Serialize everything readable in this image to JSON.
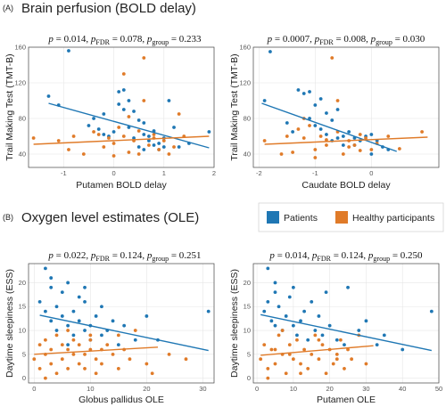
{
  "colors": {
    "patients": "#1f77b4",
    "healthy": "#e07b29"
  },
  "sections": [
    {
      "letter": "(A)",
      "title": "Brain perfusion (BOLD delay)"
    },
    {
      "letter": "(B)",
      "title": "Oxygen level estimates (OLE)"
    }
  ],
  "legend": {
    "items": [
      "Patients",
      "Healthy participants"
    ],
    "placement": "right, between panels"
  },
  "chart_data": [
    {
      "type": "scatter",
      "stats": {
        "p": "0.014",
        "p_fdr": "0.078",
        "p_group": "0.233"
      },
      "xlabel": "Putamen BOLD delay",
      "ylabel": "Trail Making Test (TMT-B)",
      "xlim": [
        -1.7,
        2.0
      ],
      "ylim": [
        25,
        160
      ],
      "xticks": [
        -1,
        0,
        1,
        2
      ],
      "yticks": [
        40,
        80,
        120,
        160
      ],
      "grid": true,
      "series": [
        {
          "name": "Patients",
          "color": "#1f77b4",
          "x": [
            -1.3,
            -1.1,
            -0.9,
            -0.5,
            -0.4,
            -0.3,
            -0.2,
            -0.1,
            0.0,
            0.1,
            0.2,
            0.2,
            0.3,
            0.3,
            0.4,
            0.5,
            0.5,
            0.6,
            0.6,
            0.7,
            0.7,
            0.8,
            0.8,
            0.9,
            0.9,
            1.0,
            1.0,
            1.1,
            1.2,
            1.3,
            1.5,
            1.9,
            0.4,
            0.1,
            -0.2,
            0.6
          ],
          "y": [
            105,
            95,
            156,
            72,
            80,
            68,
            85,
            60,
            65,
            110,
            112,
            90,
            70,
            100,
            58,
            48,
            78,
            62,
            45,
            60,
            55,
            50,
            66,
            52,
            45,
            48,
            58,
            100,
            70,
            48,
            52,
            65,
            88,
            96,
            62,
            75
          ],
          "trend": [
            [
              -1.3,
              97
            ],
            [
              1.9,
              47
            ]
          ]
        },
        {
          "name": "Healthy participants",
          "color": "#e07b29",
          "x": [
            -1.6,
            -1.1,
            -0.9,
            -0.8,
            -0.6,
            -0.4,
            -0.3,
            -0.2,
            -0.1,
            0.0,
            0.0,
            0.1,
            0.2,
            0.3,
            0.3,
            0.4,
            0.5,
            0.5,
            0.6,
            0.7,
            0.8,
            0.9,
            1.0,
            1.1,
            1.2,
            1.3,
            1.4,
            0.2,
            0.6,
            0.8
          ],
          "y": [
            58,
            55,
            45,
            60,
            40,
            65,
            62,
            48,
            58,
            38,
            52,
            70,
            60,
            82,
            42,
            55,
            40,
            66,
            148,
            50,
            58,
            45,
            55,
            40,
            48,
            85,
            60,
            130,
            100,
            62
          ],
          "trend": [
            [
              -1.6,
              51
            ],
            [
              1.9,
              60
            ]
          ]
        }
      ]
    },
    {
      "type": "scatter",
      "stats": {
        "p": "0.0007",
        "p_fdr": "0.008",
        "p_group": "0.030"
      },
      "xlabel": "Caudate BOLD delay",
      "ylabel": "Trail Making Test (TMT-B)",
      "xlim": [
        -2.1,
        1.2
      ],
      "ylim": [
        25,
        160
      ],
      "xticks": [
        -2,
        -1,
        0
      ],
      "yticks": [
        40,
        80,
        120,
        160
      ],
      "grid": true,
      "series": [
        {
          "name": "Patients",
          "color": "#1f77b4",
          "x": [
            -1.9,
            -1.8,
            -1.4,
            -1.3,
            -1.2,
            -1.1,
            -1.1,
            -1.0,
            -1.0,
            -0.9,
            -0.8,
            -0.8,
            -0.7,
            -0.7,
            -0.6,
            -0.5,
            -0.5,
            -0.4,
            -0.3,
            -0.2,
            -0.1,
            0.0,
            0.1,
            0.2,
            0.3,
            -1.5,
            -0.9,
            -0.6,
            -0.3,
            0.0
          ],
          "y": [
            100,
            155,
            65,
            112,
            108,
            110,
            80,
            72,
            95,
            102,
            86,
            62,
            78,
            55,
            90,
            60,
            50,
            65,
            58,
            55,
            60,
            62,
            55,
            48,
            45,
            75,
            68,
            58,
            50,
            40
          ],
          "trend": [
            [
              -1.95,
              97
            ],
            [
              0.45,
              43
            ]
          ]
        },
        {
          "name": "Healthy participants",
          "color": "#e07b29",
          "x": [
            -1.9,
            -1.6,
            -1.5,
            -1.4,
            -1.3,
            -1.2,
            -1.1,
            -1.0,
            -0.9,
            -0.8,
            -0.7,
            -0.6,
            -0.5,
            -0.4,
            -0.3,
            -0.2,
            -0.1,
            0.0,
            0.1,
            0.3,
            0.5,
            0.9,
            -1.2,
            -0.6,
            -0.2,
            -0.8,
            -1.0,
            -0.4
          ],
          "y": [
            55,
            40,
            60,
            42,
            68,
            58,
            72,
            45,
            60,
            50,
            148,
            65,
            40,
            55,
            50,
            62,
            58,
            45,
            52,
            60,
            46,
            65,
            80,
            100,
            44,
            56,
            36,
            48
          ],
          "trend": [
            [
              -1.9,
              51
            ],
            [
              1.0,
              59
            ]
          ]
        }
      ]
    },
    {
      "type": "scatter",
      "stats": {
        "p": "0.022",
        "p_fdr": "0.124",
        "p_group": "0.251"
      },
      "xlabel": "Globus pallidus OLE",
      "ylabel": "Daytime sleepiness (ESS)",
      "xlim": [
        -1,
        32
      ],
      "ylim": [
        -1,
        24
      ],
      "xticks": [
        0,
        10,
        20,
        30
      ],
      "yticks": [
        0,
        5,
        10,
        15,
        20
      ],
      "grid": true,
      "series": [
        {
          "name": "Patients",
          "color": "#1f77b4",
          "x": [
            1,
            2,
            2,
            3,
            3,
            4,
            4,
            5,
            5,
            6,
            6,
            7,
            7,
            8,
            8,
            9,
            9,
            10,
            10,
            11,
            12,
            12,
            13,
            14,
            15,
            16,
            18,
            20,
            22,
            31,
            3,
            6,
            9
          ],
          "y": [
            16,
            23,
            14,
            19,
            12,
            15,
            10,
            13,
            18,
            11,
            20,
            9,
            14,
            12,
            17,
            10,
            19,
            11,
            8,
            13,
            15,
            9,
            10,
            12,
            7,
            11,
            8,
            13,
            8,
            14,
            21,
            7,
            16
          ],
          "trend": [
            [
              1,
              13.2
            ],
            [
              31,
              5.8
            ]
          ]
        },
        {
          "name": "Healthy participants",
          "color": "#e07b29",
          "x": [
            0,
            1,
            1,
            2,
            2,
            3,
            3,
            4,
            4,
            5,
            5,
            6,
            6,
            7,
            7,
            8,
            8,
            9,
            9,
            10,
            10,
            11,
            11,
            12,
            12,
            13,
            14,
            15,
            16,
            17,
            18,
            20,
            21,
            24,
            27,
            2,
            6,
            10,
            15
          ],
          "y": [
            4,
            7,
            2,
            5,
            8,
            3,
            6,
            1,
            9,
            4,
            7,
            2,
            6,
            5,
            8,
            3,
            7,
            5,
            2,
            6,
            9,
            4,
            1,
            6,
            3,
            7,
            5,
            2,
            6,
            4,
            10,
            3,
            1,
            5,
            4,
            0,
            10,
            8,
            9
          ],
          "trend": [
            [
              0,
              5.0
            ],
            [
              22,
              6.5
            ]
          ]
        }
      ]
    },
    {
      "type": "scatter",
      "stats": {
        "p": "0.014",
        "p_fdr": "0.124",
        "p_group": "0.250"
      },
      "xlabel": "Putamen OLE",
      "ylabel": "Daytime sleepiness (ESS)",
      "xlim": [
        -1,
        50
      ],
      "ylim": [
        -1,
        24
      ],
      "xticks": [
        0,
        10,
        20,
        30,
        40,
        50
      ],
      "yticks": [
        0,
        5,
        10,
        15,
        20
      ],
      "grid": true,
      "series": [
        {
          "name": "Patients",
          "color": "#1f77b4",
          "x": [
            2,
            3,
            3,
            4,
            5,
            5,
            6,
            7,
            8,
            9,
            10,
            11,
            12,
            13,
            14,
            15,
            16,
            17,
            18,
            20,
            22,
            25,
            28,
            30,
            33,
            35,
            40,
            48,
            5,
            10,
            19,
            24
          ],
          "y": [
            14,
            16,
            23,
            12,
            18,
            11,
            15,
            10,
            13,
            17,
            11,
            9,
            12,
            14,
            8,
            16,
            10,
            13,
            9,
            11,
            8,
            19,
            10,
            12,
            7,
            9,
            6,
            14,
            20,
            19,
            18,
            7
          ],
          "trend": [
            [
              1,
              13.3
            ],
            [
              48,
              5.8
            ]
          ]
        },
        {
          "name": "Healthy participants",
          "color": "#e07b29",
          "x": [
            1,
            2,
            3,
            4,
            5,
            6,
            7,
            8,
            9,
            10,
            11,
            12,
            13,
            14,
            15,
            16,
            17,
            18,
            19,
            20,
            21,
            22,
            23,
            24,
            25,
            26,
            28,
            30,
            3,
            7,
            12,
            17,
            22,
            5,
            9
          ],
          "y": [
            4,
            7,
            2,
            6,
            3,
            9,
            5,
            1,
            7,
            4,
            8,
            3,
            6,
            2,
            5,
            9,
            4,
            7,
            1,
            6,
            3,
            5,
            8,
            2,
            6,
            4,
            9,
            3,
            0,
            10,
            1,
            8,
            4,
            6,
            5
          ],
          "trend": [
            [
              1,
              4.8
            ],
            [
              32,
              6.8
            ]
          ]
        }
      ]
    }
  ]
}
